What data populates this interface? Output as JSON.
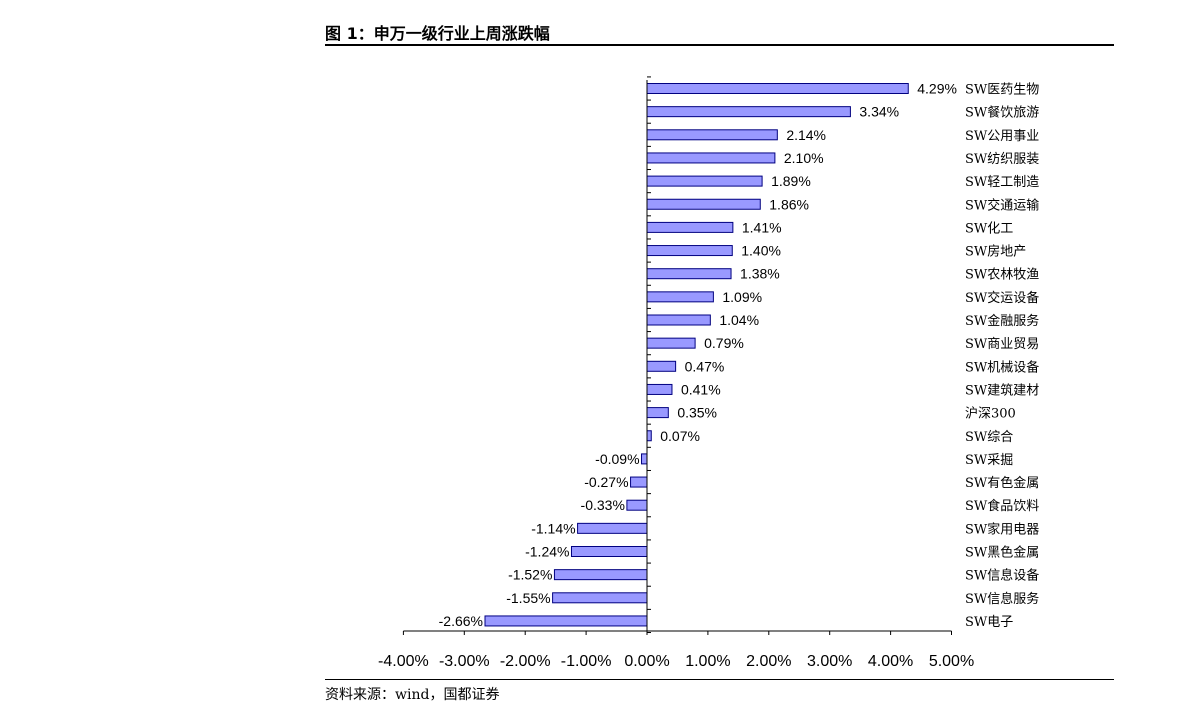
{
  "figure": {
    "title": "图 1：申万一级行业上周涨跌幅",
    "source": "资料来源：wind，国都证券"
  },
  "chart_data": {
    "type": "bar",
    "orientation": "horizontal",
    "categories": [
      "SW医药生物",
      "SW餐饮旅游",
      "SW公用事业",
      "SW纺织服装",
      "SW轻工制造",
      "SW交通运输",
      "SW化工",
      "SW房地产",
      "SW农林牧渔",
      "SW交运设备",
      "SW金融服务",
      "SW商业贸易",
      "SW机械设备",
      "SW建筑建材",
      "沪深300",
      "SW综合",
      "SW采掘",
      "SW有色金属",
      "SW食品饮料",
      "SW家用电器",
      "SW黑色金属",
      "SW信息设备",
      "SW信息服务",
      "SW电子"
    ],
    "values": [
      4.29,
      3.34,
      2.14,
      2.1,
      1.89,
      1.86,
      1.41,
      1.4,
      1.38,
      1.09,
      1.04,
      0.79,
      0.47,
      0.41,
      0.35,
      0.07,
      -0.09,
      -0.27,
      -0.33,
      -1.14,
      -1.24,
      -1.52,
      -1.55,
      -2.66
    ],
    "value_labels": [
      "4.29%",
      "3.34%",
      "2.14%",
      "2.10%",
      "1.89%",
      "1.86%",
      "1.41%",
      "1.40%",
      "1.38%",
      "1.09%",
      "1.04%",
      "0.79%",
      "0.47%",
      "0.41%",
      "0.35%",
      "0.07%",
      "-0.09%",
      "-0.27%",
      "-0.33%",
      "-1.14%",
      "-1.24%",
      "-1.52%",
      "-1.55%",
      "-2.66%"
    ],
    "xlim": [
      -4,
      5
    ],
    "xticks": [
      -4,
      -3,
      -2,
      -1,
      0,
      1,
      2,
      3,
      4,
      5
    ],
    "xtick_labels": [
      "-4.00%",
      "-3.00%",
      "-2.00%",
      "-1.00%",
      "0.00%",
      "1.00%",
      "2.00%",
      "3.00%",
      "4.00%",
      "5.00%"
    ],
    "grid": false,
    "legend": false,
    "bar_color": "#9999ff",
    "bar_edge_color": "#000080"
  }
}
